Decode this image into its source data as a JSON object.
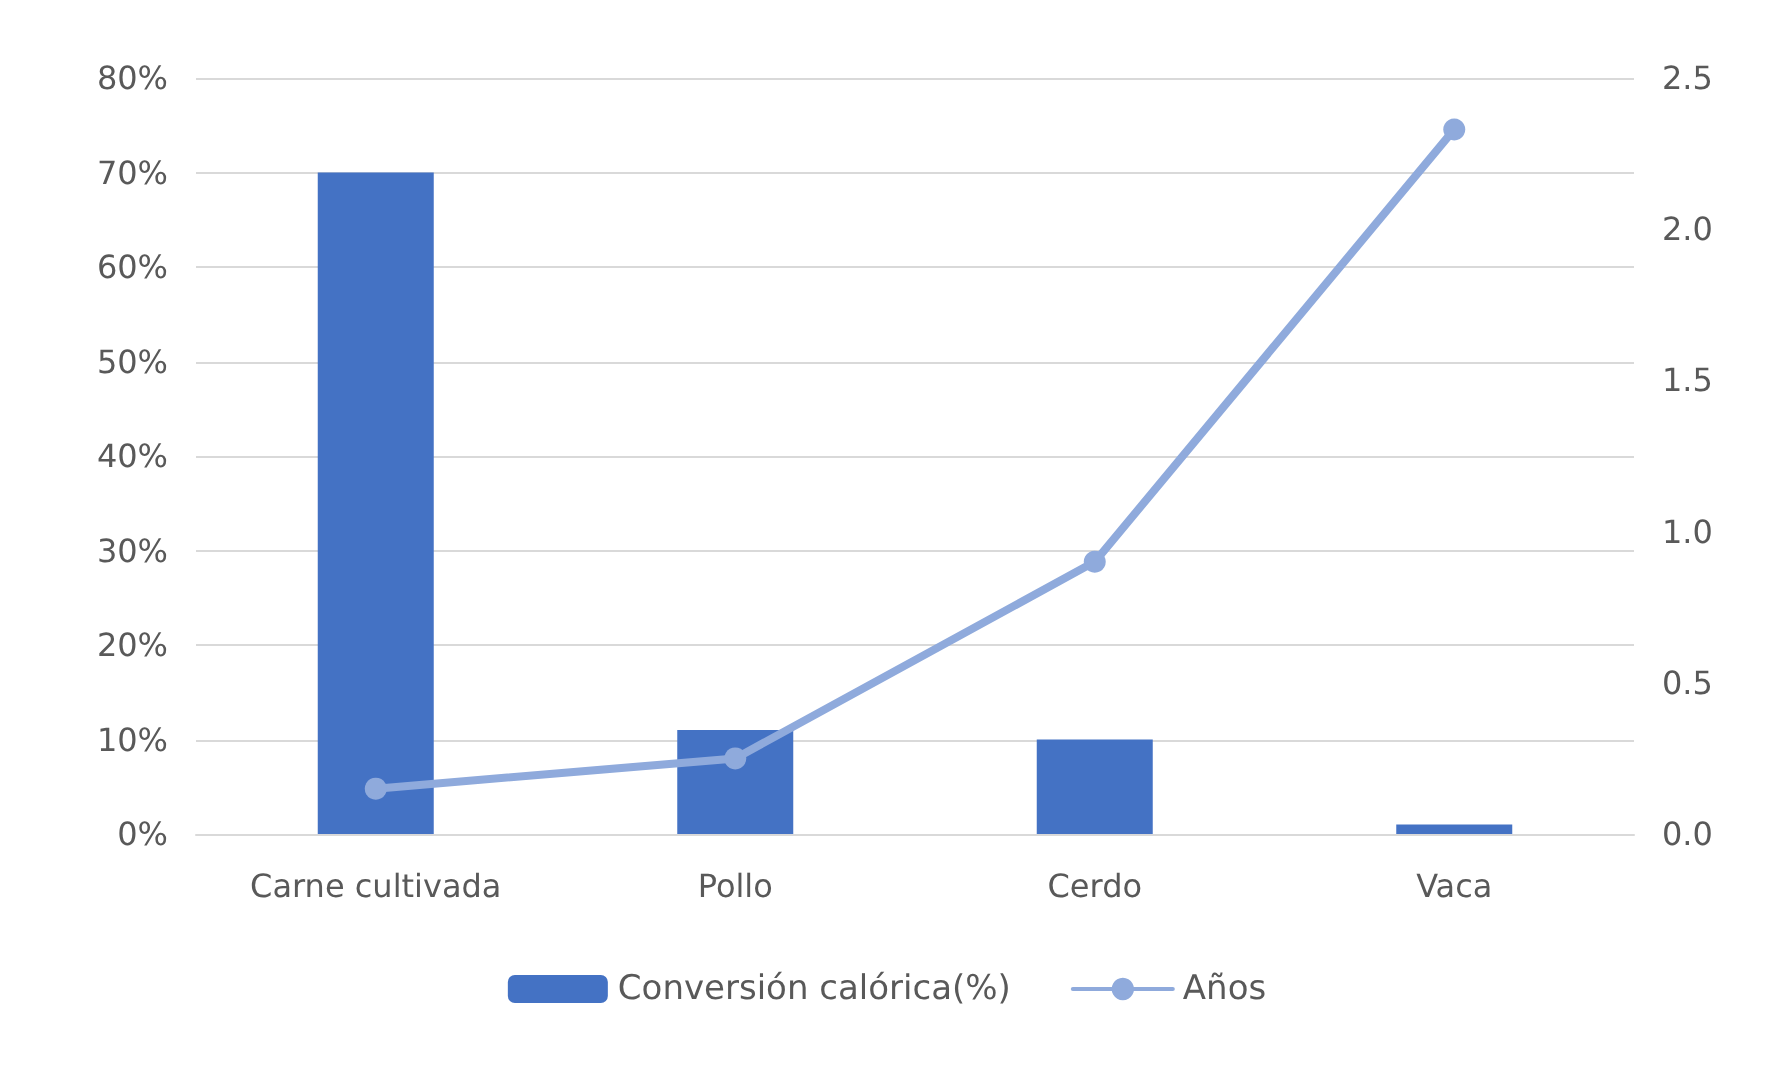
{
  "chart_data": {
    "type": "bar",
    "categories": [
      "Carne cultivada",
      "Pollo",
      "Cerdo",
      "Vaca"
    ],
    "series": [
      {
        "name": "Conversión calórica(%)",
        "color": "#4472c4",
        "values": [
          70,
          11,
          10,
          1
        ]
      },
      {
        "name": "Años",
        "type": "line",
        "axis": "y2",
        "color": "#8faadc",
        "values": [
          0.15,
          0.25,
          0.9,
          2.33
        ]
      }
    ],
    "ylim": [
      0,
      80
    ],
    "yticks": [
      {
        "value": 0,
        "label": "0%"
      },
      {
        "value": 10,
        "label": "10%"
      },
      {
        "value": 20,
        "label": "20%"
      },
      {
        "value": 30,
        "label": "30%"
      },
      {
        "value": 40,
        "label": "40%"
      },
      {
        "value": 50,
        "label": "50%"
      },
      {
        "value": 60,
        "label": "60%"
      },
      {
        "value": 70,
        "label": "70%"
      },
      {
        "value": 80,
        "label": "80%"
      }
    ],
    "y2lim": [
      0,
      2.5
    ],
    "y2ticks": [
      {
        "value": 0,
        "label": "0.0"
      },
      {
        "value": 0.5,
        "label": "0.5"
      },
      {
        "value": 1,
        "label": "1.0"
      },
      {
        "value": 1.5,
        "label": "1.5"
      },
      {
        "value": 2,
        "label": "2.0"
      },
      {
        "value": 2.5,
        "label": "2.5"
      }
    ],
    "grid": "y",
    "legend": "bottom",
    "marker": "circle"
  }
}
